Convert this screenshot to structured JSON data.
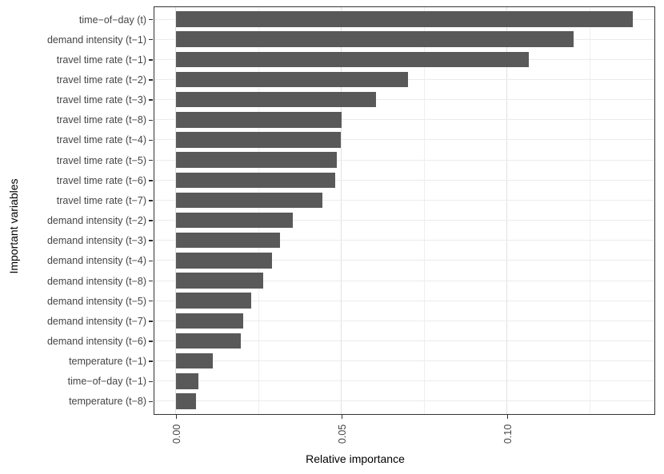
{
  "chart_data": {
    "type": "bar",
    "orientation": "horizontal",
    "xlabel": "Relative importance",
    "ylabel": "Important variables",
    "categories": [
      "time−of−day (t)",
      "demand intensity (t−1)",
      "travel time rate (t−1)",
      "travel time rate (t−2)",
      "travel time rate (t−3)",
      "travel time rate (t−8)",
      "travel time rate (t−4)",
      "travel time rate (t−5)",
      "travel time rate (t−6)",
      "travel time rate (t−7)",
      "demand intensity (t−2)",
      "demand intensity (t−3)",
      "demand intensity (t−4)",
      "demand intensity (t−8)",
      "demand intensity (t−5)",
      "demand intensity (t−7)",
      "demand intensity (t−6)",
      "temperature (t−1)",
      "time−of−day (t−1)",
      "temperature (t−8)"
    ],
    "values": [
      0.138,
      0.12,
      0.1065,
      0.07,
      0.0603,
      0.05,
      0.0498,
      0.0485,
      0.048,
      0.0443,
      0.0352,
      0.0314,
      0.0291,
      0.0264,
      0.0227,
      0.0203,
      0.0197,
      0.0111,
      0.0068,
      0.006
    ],
    "x_ticks": [
      {
        "value": 0.0,
        "label": "0.00"
      },
      {
        "value": 0.05,
        "label": "0.05"
      },
      {
        "value": 0.1,
        "label": "0.10"
      }
    ],
    "x_minor_gridlines": [
      0.025,
      0.075,
      0.125
    ],
    "xlim": [
      -0.00649,
      0.14423
    ],
    "grid": true,
    "legend": "none",
    "bar_color": "#595959",
    "panel_border_color": "#333333",
    "major_grid_color": "#e2e2e2",
    "minor_grid_color": "#efefef",
    "horizontal_grid_color": "#ebebeb",
    "axis_text_color": "#444444",
    "axis_title_color": "#000000"
  }
}
